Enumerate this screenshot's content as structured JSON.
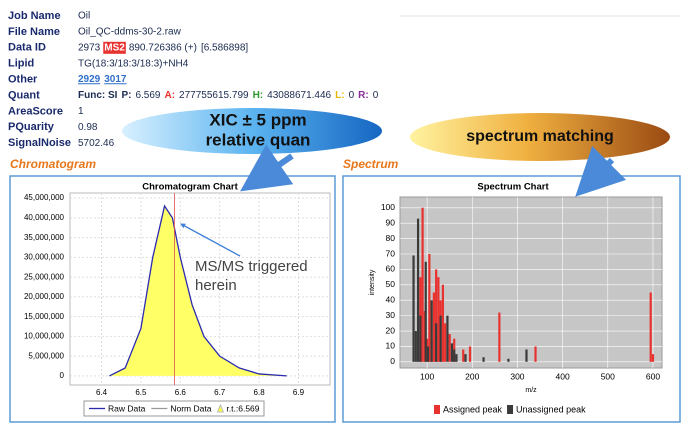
{
  "info": {
    "rows": [
      {
        "label": "Job Name",
        "value": [
          "Oil"
        ]
      },
      {
        "label": "File Name",
        "value": [
          "Oil_QC-ddms-30-2.raw"
        ]
      },
      {
        "label": "Data ID",
        "value": [
          "2973",
          "MS2",
          "890.726386 (+)",
          "[6.586898]"
        ]
      },
      {
        "label": "Lipid",
        "value": [
          "TG(18:3/18:3/18:3)+NH4"
        ]
      },
      {
        "label": "Other",
        "value": [
          "2929",
          "3017"
        ]
      },
      {
        "label": "Quant",
        "value": [
          "Func: SI",
          "P:",
          "6.569",
          "A:",
          "277755615.799",
          "H:",
          "43088671.446",
          "L:",
          "0",
          "R:",
          "0"
        ]
      },
      {
        "label": "AreaScore",
        "value": [
          "1"
        ]
      },
      {
        "label": "PQuarity",
        "value": [
          "0.98"
        ]
      },
      {
        "label": "SignalNoise",
        "value": [
          "5702.46"
        ]
      }
    ]
  },
  "callouts": [
    {
      "lines": [
        "XIC ± 5 ppm",
        "relative quan"
      ]
    },
    {
      "lines": [
        "spectrum matching"
      ]
    }
  ],
  "sections": [
    "Chromatogram",
    "Spectrum"
  ],
  "chart_data": [
    {
      "type": "line",
      "title": "Chromatogram Chart",
      "x": [
        6.42,
        6.46,
        6.5,
        6.53,
        6.56,
        6.58,
        6.6,
        6.63,
        6.66,
        6.7,
        6.75,
        6.8,
        6.87
      ],
      "series": [
        {
          "name": "Raw Data",
          "color": "#2b2bb0",
          "fill": "#ffff66",
          "values": [
            0,
            2000000,
            12000000,
            30000000,
            43000000,
            40000000,
            30000000,
            18000000,
            10000000,
            5000000,
            2000000,
            500000,
            0
          ]
        },
        {
          "name": "Norm Data",
          "color": "#999999",
          "values": [
            null,
            null,
            null,
            null,
            null,
            null,
            null,
            null,
            null,
            null,
            null,
            null,
            null
          ]
        },
        {
          "name": "r.t.:6.569",
          "color": "#e05050",
          "values": [
            null,
            null,
            null,
            null,
            null,
            null,
            null,
            null,
            null,
            null,
            null,
            null,
            null
          ]
        }
      ],
      "rt_line": 6.585,
      "annotation": [
        "MS/MS triggered",
        "herein"
      ],
      "xlim": [
        6.32,
        6.98
      ],
      "xticks": [
        6.4,
        6.5,
        6.6,
        6.7,
        6.8,
        6.9
      ],
      "ylim": [
        -2300000,
        46300000
      ],
      "yticks": [
        {
          "value": 0,
          "label": "0"
        },
        {
          "value": 5000000,
          "label": "5,000,000"
        },
        {
          "value": 10000000,
          "label": "10,000,000"
        },
        {
          "value": 15000000,
          "label": "15,000,000"
        },
        {
          "value": 20000000,
          "label": "20,000,000"
        },
        {
          "value": 25000000,
          "label": "25,000,000"
        },
        {
          "value": 30000000,
          "label": "30,000,000"
        },
        {
          "value": 35000000,
          "label": "35,000,000"
        },
        {
          "value": 40000000,
          "label": "40,000,000"
        },
        {
          "value": 45000000,
          "label": "45,000,000"
        }
      ],
      "grid": true
    },
    {
      "type": "stick",
      "title": "Spectrum Chart",
      "x_label": "m/z",
      "y_label": "intensity",
      "series": [
        {
          "name": "Assigned peak",
          "color": "#e8322f",
          "x": [
            85,
            90,
            95,
            100,
            105,
            110,
            115,
            120,
            125,
            130,
            135,
            140,
            150,
            160,
            180,
            195,
            260,
            340,
            595,
            600
          ],
          "values": [
            55,
            100,
            33,
            15,
            70,
            15,
            45,
            60,
            55,
            40,
            50,
            25,
            18,
            15,
            8,
            10,
            32,
            10,
            45,
            5
          ]
        },
        {
          "name": "Unassigned peak",
          "color": "#3a3a3a",
          "x": [
            70,
            75,
            80,
            85,
            97,
            102,
            110,
            120,
            130,
            145,
            155,
            160,
            165,
            185,
            225,
            280,
            320
          ],
          "values": [
            69,
            20,
            93,
            30,
            65,
            10,
            40,
            25,
            30,
            30,
            12,
            8,
            5,
            5,
            3,
            2,
            8
          ]
        }
      ],
      "xlim": [
        40,
        620
      ],
      "xticks": [
        100,
        200,
        300,
        400,
        500,
        600
      ],
      "ylim": [
        -4,
        107
      ],
      "yticks": [
        0,
        10,
        20,
        30,
        40,
        50,
        60,
        70,
        80,
        90,
        100
      ],
      "grid": true
    }
  ]
}
